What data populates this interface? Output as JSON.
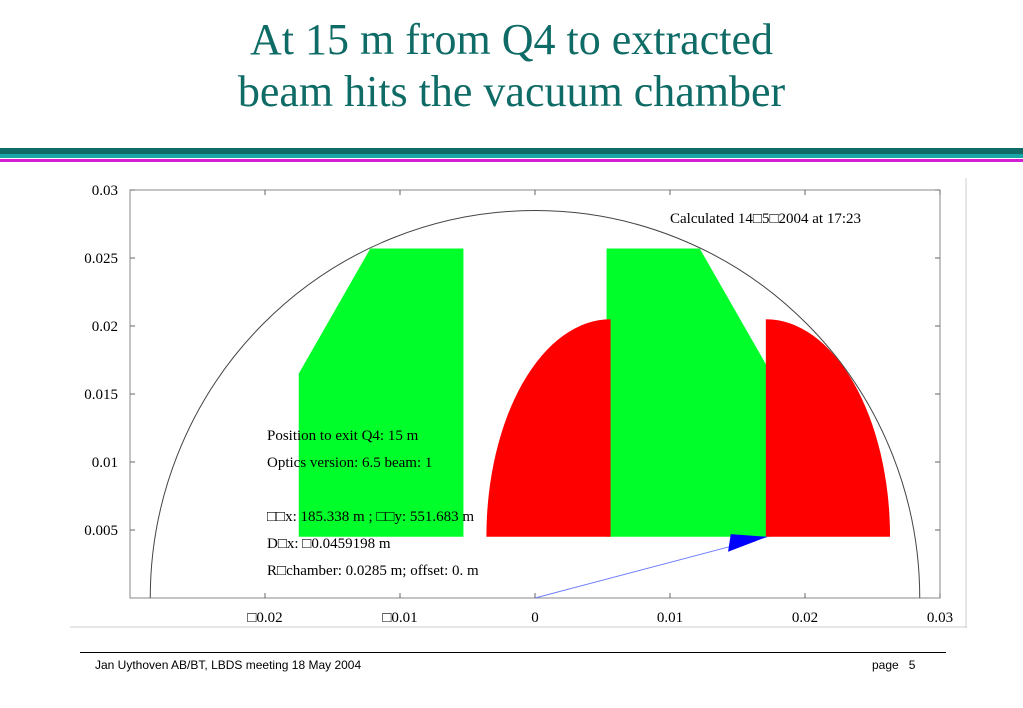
{
  "slide": {
    "title_line1": "At 15 m from Q4 to extracted",
    "title_line2": "beam hits the vacuum chamber"
  },
  "chart_data": {
    "type": "scatter",
    "title": "",
    "xlabel": "",
    "ylabel": "",
    "xlim": [
      -0.03,
      0.03
    ],
    "ylim": [
      0,
      0.03
    ],
    "x_ticks": [
      {
        "value": -0.02,
        "label": "□0.02"
      },
      {
        "value": -0.01,
        "label": "□0.01"
      },
      {
        "value": 0,
        "label": "0"
      },
      {
        "value": 0.01,
        "label": "0.01"
      },
      {
        "value": 0.02,
        "label": "0.02"
      },
      {
        "value": 0.03,
        "label": "0.03"
      }
    ],
    "y_ticks": [
      {
        "value": 0.005,
        "label": "0.005"
      },
      {
        "value": 0.01,
        "label": "0.01"
      },
      {
        "value": 0.015,
        "label": "0.015"
      },
      {
        "value": 0.02,
        "label": "0.02"
      },
      {
        "value": 0.025,
        "label": "0.025"
      },
      {
        "value": 0.03,
        "label": "0.03"
      }
    ],
    "grid": false,
    "calc_note": "Calculated 14□5□2004 at 17:23",
    "info_lines": [
      "Position to exit Q4:  15 m",
      "Optics  version:  6.5   beam: 1",
      "",
      "□□x:  185.338 m ;  □□y:  551.683 m",
      "D□x:  □0.0459198 m",
      "R□chamber:  0.0285 m; offset: 0. m"
    ],
    "chamber": {
      "radius": 0.0285,
      "x_offset": 0
    },
    "green_regions": [
      [
        [
          -0.0175,
          0.0045
        ],
        [
          -0.0175,
          0.0165
        ],
        [
          -0.0122,
          0.0257
        ],
        [
          -0.0053,
          0.0257
        ],
        [
          -0.0053,
          0.0045
        ]
      ],
      [
        [
          0.0053,
          0.0045
        ],
        [
          0.0053,
          0.0257
        ],
        [
          0.0122,
          0.0257
        ],
        [
          0.0175,
          0.0165
        ],
        [
          0.0175,
          0.0045
        ]
      ]
    ],
    "red_regions": [
      {
        "x0": 0.0056,
        "x1": -0.0036,
        "y0": 0.0045,
        "ry": 0.016
      },
      {
        "x0": 0.0171,
        "x1": 0.0263,
        "y0": 0.0045,
        "ry": 0.016
      }
    ],
    "blue_line": [
      [
        0,
        0
      ],
      [
        0.0172,
        0.0045
      ]
    ],
    "blue_triangle": [
      [
        0.0172,
        0.0045
      ],
      [
        0.0143,
        0.0034
      ],
      [
        0.0145,
        0.0047
      ]
    ],
    "colors": {
      "green": "#00ff2a",
      "red": "#ff0000",
      "blue": "#0000ff",
      "blue_line": "#6f7fff",
      "chamber": "#444444",
      "title": "#0f6b66"
    }
  },
  "footer": {
    "left": "Jan Uythoven AB/BT, LBDS meeting 18 May 2004",
    "page_label": "page",
    "page_number": "5"
  }
}
